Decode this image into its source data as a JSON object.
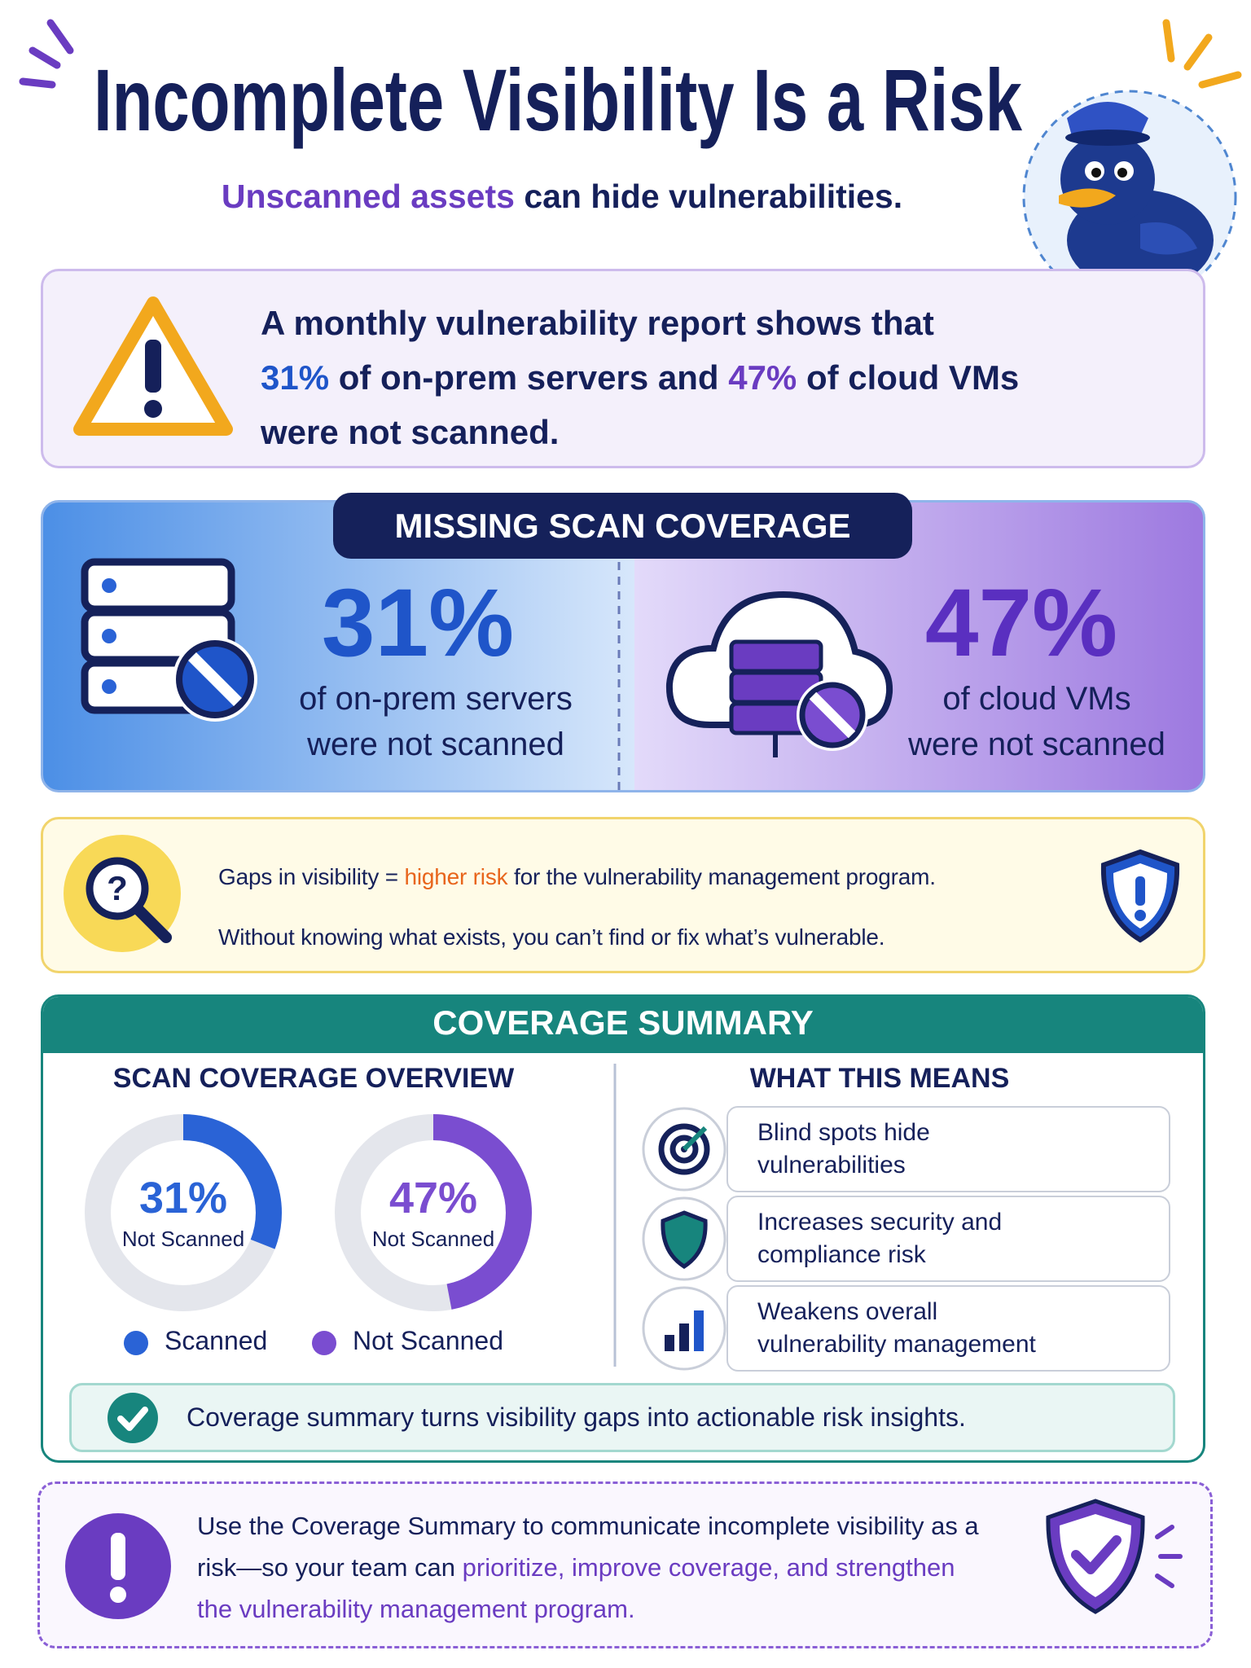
{
  "header": {
    "title": "Incomplete Visibility Is a Risk",
    "subtitle": [
      [
        {
          "text": "Unscanned assets",
          "color": "#6a3cc1"
        },
        {
          "text": "can hide vulnerabilities.",
          "color": "#15205a"
        }
      ]
    ]
  },
  "intro": {
    "lines": [
      [
        {
          "text": "A monthly vulnerability report shows that",
          "color": "#15205a"
        }
      ],
      [
        {
          "text": "31%",
          "color": "#1f55c9"
        },
        {
          "text": "of on-prem servers and",
          "color": "#15205a"
        },
        {
          "text": "47%",
          "color": "#6a3cc1"
        },
        {
          "text": "of cloud VMs",
          "color": "#15205a"
        }
      ],
      [
        {
          "text": "were not scanned.",
          "color": "#15205a"
        }
      ]
    ]
  },
  "coverage": {
    "title": "MISSING SCAN COVERAGE",
    "items": [
      {
        "stat": "31%",
        "color": "#1f55c9",
        "caption": [
          "of on-prem servers",
          "were not scanned"
        ]
      },
      {
        "stat": "47%",
        "color": "#5a2fc0",
        "caption": [
          "of cloud VMs",
          "were not scanned"
        ]
      }
    ]
  },
  "risk_note": {
    "lines": [
      [
        {
          "text": "Gaps in visibility =",
          "color": "#15205a"
        },
        {
          "text": "higher risk",
          "color": "#e8651c"
        },
        {
          "text": "for the vulnerability management program.",
          "color": "#15205a"
        }
      ],
      [
        {
          "text": "Without knowing what exists, you can’t find or fix what’s vulnerable.",
          "color": "#15205a"
        }
      ]
    ]
  },
  "summary": {
    "title": "COVERAGE SUMMARY",
    "overview": {
      "title": "SCAN COVERAGE OVERVIEW",
      "donuts": [
        {
          "value": 31,
          "label": "31%",
          "caption": "Not Scanned",
          "color": "#2a63d6"
        },
        {
          "value": 47,
          "label": "47%",
          "caption": "Not Scanned",
          "color": "#7a4dd0"
        }
      ],
      "legend": [
        {
          "label": "Scanned",
          "color": "#2a63d6"
        },
        {
          "label": "Not Scanned",
          "color": "#7a4dd0"
        }
      ]
    },
    "meanings": {
      "title": "WHAT THIS MEANS",
      "items": [
        [
          "Blind spots hide",
          "vulnerabilities"
        ],
        [
          "Increases security and",
          "compliance risk"
        ],
        [
          "Weakens overall",
          "vulnerability management"
        ]
      ]
    },
    "footer": "Coverage summary turns visibility gaps into actionable risk insights."
  },
  "callout": {
    "lines": [
      [
        {
          "text": "Use the Coverage Summary to communicate incomplete visibility as a",
          "color": "#15205a"
        }
      ],
      [
        {
          "text": "risk—so your team can",
          "color": "#15205a"
        },
        {
          "text": "prioritize, improve coverage, and strengthen",
          "color": "#6a3cc1"
        }
      ],
      [
        {
          "text": "the vulnerability management program.",
          "color": "#6a3cc1"
        }
      ]
    ]
  }
}
